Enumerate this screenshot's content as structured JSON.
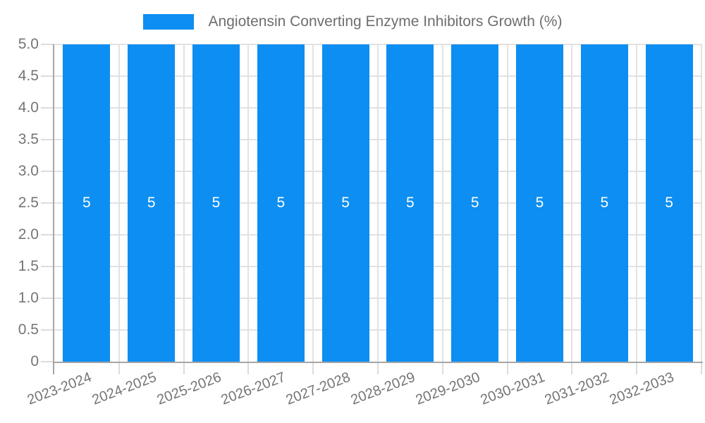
{
  "chart_data": {
    "type": "bar",
    "legend": "Angiotensin Converting Enzyme Inhibitors Growth (%)",
    "legend_position": "top",
    "categories": [
      "2023-2024",
      "2024-2025",
      "2025-2026",
      "2026-2027",
      "2027-2028",
      "2028-2029",
      "2029-2030",
      "2030-2031",
      "2031-2032",
      "2032-2033"
    ],
    "series": [
      {
        "name": "Angiotensin Converting Enzyme Inhibitors Growth (%)",
        "values": [
          5,
          5,
          5,
          5,
          5,
          5,
          5,
          5,
          5,
          5
        ]
      }
    ],
    "bar_value_labels": [
      "5",
      "5",
      "5",
      "5",
      "5",
      "5",
      "5",
      "5",
      "5",
      "5"
    ],
    "xlabel": "",
    "ylabel": "",
    "ylim": [
      0,
      5
    ],
    "ytick_values": [
      0,
      0.5,
      1,
      1.5,
      2,
      2.5,
      3,
      3.5,
      4,
      4.5,
      5
    ],
    "ytick_labels": [
      "0",
      "0.5",
      "1.0",
      "1.5",
      "2.0",
      "2.5",
      "3.0",
      "3.5",
      "4.0",
      "4.5",
      "5.0"
    ],
    "grid": true,
    "x_label_rotation_deg": -21
  },
  "colors": {
    "bar": "#0d8ef2",
    "grid": "#e2e2e2",
    "tick": "#dcdcdc",
    "axis": "#a6a6a6",
    "tick_text": "#757575",
    "legend_text": "#6e6e6e",
    "value_label": "#ffffff",
    "background": "#ffffff"
  }
}
